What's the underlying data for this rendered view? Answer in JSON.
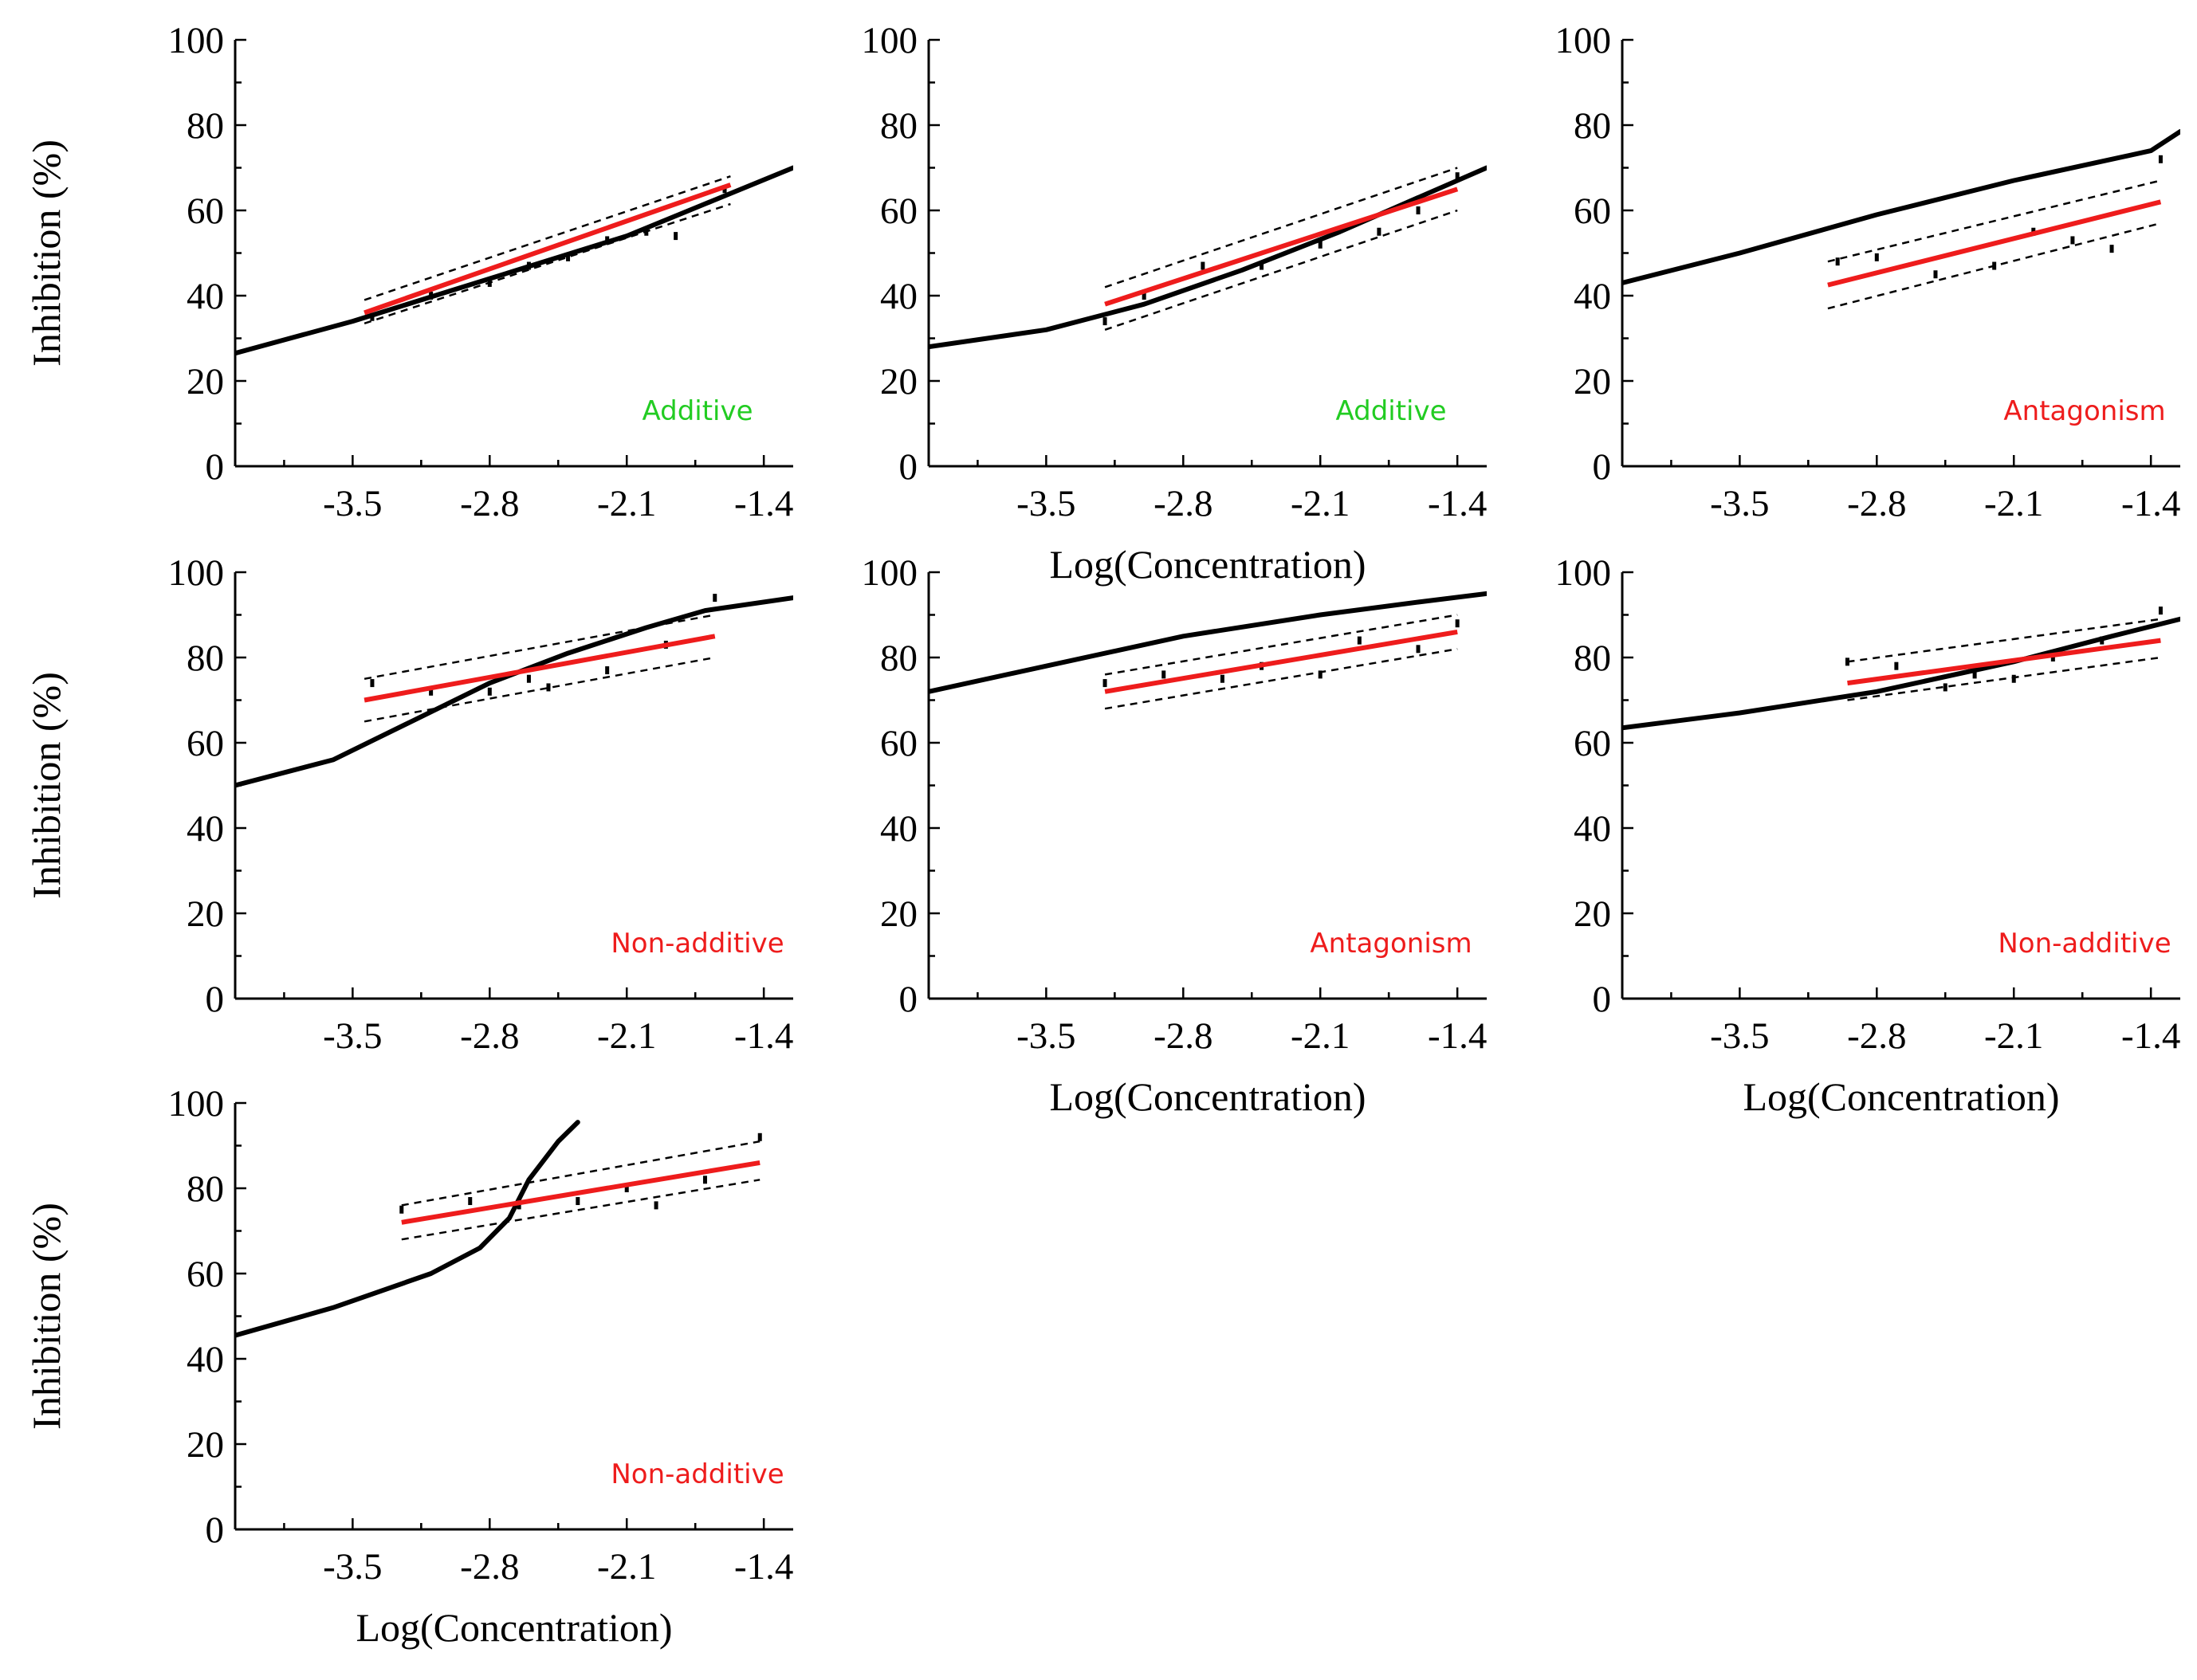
{
  "colors": {
    "reference": "#000000",
    "fit": "#ee1c1c",
    "band": "#000000",
    "additive": "#22cc22",
    "antagonism": "#ee1c1c",
    "non_additive": "#ee1c1c"
  },
  "chart_data": [
    {
      "type": "line",
      "panel": 1,
      "title": "",
      "xlabel": "",
      "ylabel": "Inhibition (%)",
      "xlim": [
        -4.1,
        -1.25
      ],
      "ylim": [
        0,
        100
      ],
      "xticks": [
        "-3.5",
        "-2.8",
        "-2.1",
        "-1.4"
      ],
      "yticks": [
        "0",
        "20",
        "40",
        "60",
        "80",
        "100"
      ],
      "verdict": "Additive",
      "verdict_color": "#22cc22",
      "reference_curve": {
        "x": [
          -4.1,
          -3.5,
          -2.8,
          -2.1,
          -1.25
        ],
        "y": [
          26.5,
          34,
          44,
          54,
          70
        ]
      },
      "fit_line": {
        "x": [
          -3.44,
          -1.57
        ],
        "y": [
          36,
          66
        ]
      },
      "band_upper": {
        "x": [
          -3.44,
          -1.57
        ],
        "y": [
          39,
          68
        ]
      },
      "band_lower": {
        "x": [
          -3.44,
          -1.57
        ],
        "y": [
          33.5,
          61.5
        ]
      },
      "points": {
        "x": [
          -3.4,
          -3.1,
          -2.8,
          -2.6,
          -2.4,
          -2.2,
          -2.0,
          -1.85,
          -1.6
        ],
        "y": [
          35,
          40,
          43,
          47,
          49,
          53,
          55,
          54,
          65
        ]
      }
    },
    {
      "type": "line",
      "panel": 2,
      "title": "",
      "xlabel": "Log(Concentration)",
      "ylabel": "",
      "xlim": [
        -4.1,
        -1.25
      ],
      "ylim": [
        0,
        100
      ],
      "xticks": [
        "-3.5",
        "-2.8",
        "-2.1",
        "-1.4"
      ],
      "yticks": [
        "0",
        "20",
        "40",
        "60",
        "80",
        "100"
      ],
      "verdict": "Additive",
      "verdict_color": "#22cc22",
      "reference_curve": {
        "x": [
          -4.1,
          -3.5,
          -3.0,
          -2.5,
          -2.0,
          -1.6,
          -1.25
        ],
        "y": [
          28,
          32,
          38,
          46,
          55,
          63,
          70
        ]
      },
      "fit_line": {
        "x": [
          -3.2,
          -1.4
        ],
        "y": [
          38,
          65
        ]
      },
      "band_upper": {
        "x": [
          -3.2,
          -1.4
        ],
        "y": [
          42,
          70
        ]
      },
      "band_lower": {
        "x": [
          -3.2,
          -1.4
        ],
        "y": [
          32,
          60
        ]
      },
      "points": {
        "x": [
          -3.2,
          -3.0,
          -2.7,
          -2.4,
          -2.1,
          -1.8,
          -1.6,
          -1.4
        ],
        "y": [
          34,
          40,
          47,
          47,
          52,
          55,
          60,
          68
        ]
      }
    },
    {
      "type": "line",
      "panel": 3,
      "title": "",
      "xlabel": "",
      "ylabel": "",
      "xlim": [
        -4.1,
        -1.25
      ],
      "ylim": [
        0,
        100
      ],
      "xticks": [
        "-3.5",
        "-2.8",
        "-2.1",
        "-1.4"
      ],
      "yticks": [
        "0",
        "20",
        "40",
        "60",
        "80",
        "100"
      ],
      "verdict": "Antagonism",
      "verdict_color": "#ee1c1c",
      "reference_curve": {
        "x": [
          -4.1,
          -3.5,
          -2.8,
          -2.1,
          -1.4,
          -1.25
        ],
        "y": [
          43,
          50,
          59,
          67,
          74,
          78.5
        ]
      },
      "fit_line": {
        "x": [
          -3.05,
          -1.35
        ],
        "y": [
          42.5,
          62
        ]
      },
      "band_upper": {
        "x": [
          -3.05,
          -1.35
        ],
        "y": [
          48,
          67
        ]
      },
      "band_lower": {
        "x": [
          -3.05,
          -1.35
        ],
        "y": [
          37,
          57
        ]
      },
      "points": {
        "x": [
          -3.0,
          -2.8,
          -2.5,
          -2.2,
          -2.0,
          -1.8,
          -1.6,
          -1.35
        ],
        "y": [
          48,
          49,
          45,
          47,
          55,
          53,
          51,
          72
        ]
      }
    },
    {
      "type": "line",
      "panel": 4,
      "title": "",
      "xlabel": "",
      "ylabel": "Inhibition (%)",
      "xlim": [
        -4.1,
        -1.25
      ],
      "ylim": [
        0,
        100
      ],
      "xticks": [
        "-3.5",
        "-2.8",
        "-2.1",
        "-1.4"
      ],
      "yticks": [
        "0",
        "20",
        "40",
        "60",
        "80",
        "100"
      ],
      "verdict": "Non-additive",
      "verdict_color": "#ee1c1c",
      "reference_curve": {
        "x": [
          -4.1,
          -3.6,
          -3.2,
          -2.8,
          -2.4,
          -2.0,
          -1.7,
          -1.25
        ],
        "y": [
          50,
          56,
          65,
          74,
          81,
          87,
          91,
          94
        ]
      },
      "fit_line": {
        "x": [
          -3.44,
          -1.65
        ],
        "y": [
          70,
          85
        ]
      },
      "band_upper": {
        "x": [
          -3.44,
          -1.65
        ],
        "y": [
          75,
          90
        ]
      },
      "band_lower": {
        "x": [
          -3.44,
          -1.65
        ],
        "y": [
          65,
          80
        ]
      },
      "points": {
        "x": [
          -3.4,
          -3.1,
          -2.8,
          -2.6,
          -2.5,
          -2.2,
          -1.9,
          -1.65
        ],
        "y": [
          74,
          72,
          72,
          75,
          73,
          77,
          83,
          94
        ]
      }
    },
    {
      "type": "line",
      "panel": 5,
      "title": "",
      "xlabel": "Log(Concentration)",
      "ylabel": "",
      "xlim": [
        -4.1,
        -1.25
      ],
      "ylim": [
        0,
        100
      ],
      "xticks": [
        "-3.5",
        "-2.8",
        "-2.1",
        "-1.4"
      ],
      "yticks": [
        "0",
        "20",
        "40",
        "60",
        "80",
        "100"
      ],
      "verdict": "Antagonism",
      "verdict_color": "#ee1c1c",
      "reference_curve": {
        "x": [
          -4.1,
          -3.5,
          -2.8,
          -2.1,
          -1.6,
          -1.25
        ],
        "y": [
          72,
          78,
          85,
          90,
          93,
          95
        ]
      },
      "fit_line": {
        "x": [
          -3.2,
          -1.4
        ],
        "y": [
          72,
          86
        ]
      },
      "band_upper": {
        "x": [
          -3.2,
          -1.4
        ],
        "y": [
          76,
          90
        ]
      },
      "band_lower": {
        "x": [
          -3.2,
          -1.4
        ],
        "y": [
          68,
          82
        ]
      },
      "points": {
        "x": [
          -3.2,
          -2.9,
          -2.6,
          -2.4,
          -2.1,
          -1.9,
          -1.6,
          -1.4
        ],
        "y": [
          74,
          76,
          75,
          78,
          76,
          84,
          82,
          88
        ]
      }
    },
    {
      "type": "line",
      "panel": 6,
      "title": "",
      "xlabel": "Log(Concentration)",
      "ylabel": "",
      "xlim": [
        -4.1,
        -1.25
      ],
      "ylim": [
        0,
        100
      ],
      "xticks": [
        "-3.5",
        "-2.8",
        "-2.1",
        "-1.4"
      ],
      "yticks": [
        "0",
        "20",
        "40",
        "60",
        "80",
        "100"
      ],
      "verdict": "Non-additive",
      "verdict_color": "#ee1c1c",
      "reference_curve": {
        "x": [
          -4.1,
          -3.5,
          -2.8,
          -2.1,
          -1.6,
          -1.25
        ],
        "y": [
          63.5,
          67,
          72,
          79,
          85,
          89
        ]
      },
      "fit_line": {
        "x": [
          -2.95,
          -1.35
        ],
        "y": [
          74,
          84
        ]
      },
      "band_upper": {
        "x": [
          -2.95,
          -1.35
        ],
        "y": [
          79,
          89
        ]
      },
      "band_lower": {
        "x": [
          -2.95,
          -1.35
        ],
        "y": [
          70,
          80
        ]
      },
      "points": {
        "x": [
          -2.95,
          -2.7,
          -2.45,
          -2.3,
          -2.1,
          -1.9,
          -1.65,
          -1.35
        ],
        "y": [
          79,
          78,
          73,
          76,
          75,
          80,
          84,
          91
        ]
      }
    },
    {
      "type": "line",
      "panel": 7,
      "title": "",
      "xlabel": "Log(Concentration)",
      "ylabel": "Inhibition (%)",
      "xlim": [
        -4.1,
        -1.25
      ],
      "ylim": [
        0,
        100
      ],
      "xticks": [
        "-3.5",
        "-2.8",
        "-2.1",
        "-1.4"
      ],
      "yticks": [
        "0",
        "20",
        "40",
        "60",
        "80",
        "100"
      ],
      "verdict": "Non-additive",
      "verdict_color": "#ee1c1c",
      "reference_curve": {
        "x": [
          -4.1,
          -3.6,
          -3.1,
          -2.85,
          -2.7,
          -2.6,
          -2.45,
          -2.35
        ],
        "y": [
          45.5,
          52,
          60,
          66,
          73,
          82,
          91,
          95.5
        ]
      },
      "fit_line": {
        "x": [
          -3.25,
          -1.42
        ],
        "y": [
          72,
          86
        ]
      },
      "band_upper": {
        "x": [
          -3.25,
          -1.42
        ],
        "y": [
          76,
          91
        ]
      },
      "band_lower": {
        "x": [
          -3.25,
          -1.42
        ],
        "y": [
          68,
          82
        ]
      },
      "points": {
        "x": [
          -3.25,
          -2.9,
          -2.65,
          -2.35,
          -2.1,
          -1.95,
          -1.7,
          -1.42
        ],
        "y": [
          75,
          77,
          76,
          77,
          80,
          76,
          82,
          92
        ]
      }
    }
  ]
}
